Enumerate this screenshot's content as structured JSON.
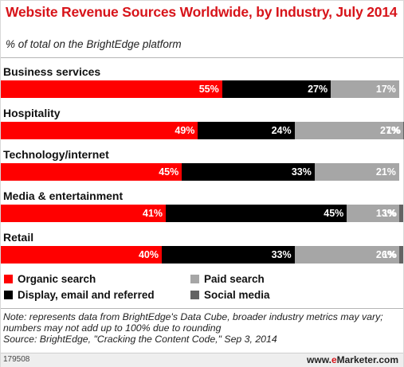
{
  "header": {
    "title": "Website Revenue Sources Worldwide, by Industry, July 2014",
    "subtitle": "% of total on the BrightEdge platform"
  },
  "chart_data": {
    "type": "bar",
    "orientation": "horizontal",
    "stacked": true,
    "title": "Website Revenue Sources Worldwide, by Industry, July 2014",
    "subtitle": "% of total on the BrightEdge platform",
    "categories": [
      "Business services",
      "Hospitality",
      "Technology/internet",
      "Media & entertainment",
      "Retail"
    ],
    "series": [
      {
        "name": "Organic search",
        "color": "#ff0000",
        "values": [
          55,
          49,
          45,
          41,
          40
        ],
        "labels": [
          "55%",
          "49%",
          "45%",
          "41%",
          "40%"
        ]
      },
      {
        "name": "Display, email and referred",
        "color": "#000000",
        "values": [
          27,
          24,
          33,
          45,
          33
        ],
        "labels": [
          "27%",
          "24%",
          "33%",
          "45%",
          "33%"
        ]
      },
      {
        "name": "Paid search",
        "color": "#a6a6a6",
        "values": [
          17,
          27,
          21,
          13,
          26
        ],
        "labels": [
          "17%",
          "27%",
          "21%",
          "13%",
          "26%"
        ]
      },
      {
        "name": "Social media",
        "color": "#636363",
        "values": [
          0,
          1,
          0,
          1,
          1
        ],
        "labels": [
          "",
          "1%",
          "",
          "1%",
          "1%"
        ]
      }
    ],
    "xlim": [
      0,
      100
    ],
    "legend_position": "bottom",
    "grid": false
  },
  "notes": {
    "note": "Note: represents data from BrightEdge's Data Cube, broader industry metrics may vary; numbers may not add up to 100% due to rounding",
    "source": "Source: BrightEdge, \"Cracking the Content Code,\" Sep 3, 2014"
  },
  "footer": {
    "chart_id": "179508",
    "brand_prefix": "www.",
    "brand_e": "e",
    "brand_suffix": "Marketer.com"
  }
}
